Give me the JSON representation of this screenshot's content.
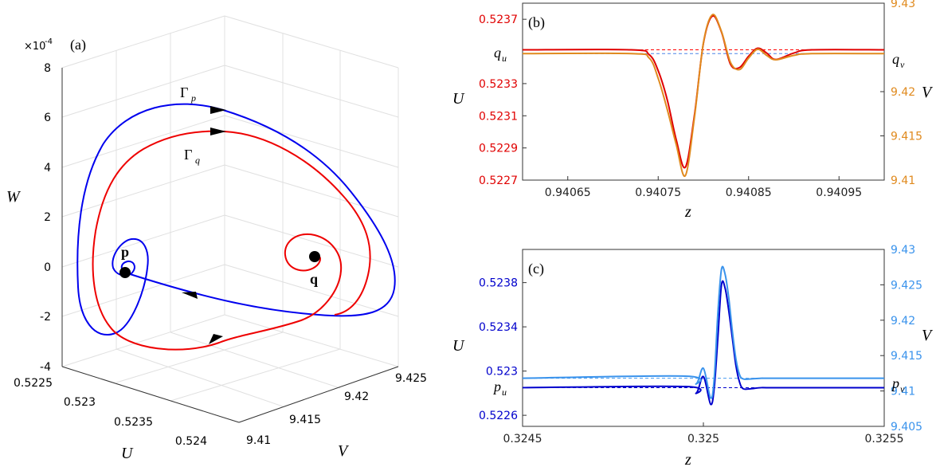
{
  "chart_data": [
    {
      "panel": "(a)",
      "type": "line",
      "projection": "3d",
      "grid": true,
      "xlabel": "U",
      "ylabel": "V",
      "zlabel": "W",
      "z_exponent_label": "×10",
      "z_exponent_power": "-4",
      "xlim": [
        0.5225,
        0.524
      ],
      "ylim": [
        9.41,
        9.425
      ],
      "zlim": [
        -4,
        8
      ],
      "x_ticks": [
        "0.5225",
        "0.523",
        "0.5235",
        "0.524"
      ],
      "y_ticks": [
        "9.41",
        "9.415",
        "9.42",
        "9.425"
      ],
      "z_ticks": [
        "-4",
        "-2",
        "0",
        "2",
        "4",
        "6",
        "8"
      ],
      "curve_labels": [
        {
          "text": "Γ",
          "sub": "p",
          "color": "#0000ee"
        },
        {
          "text": "Γ",
          "sub": "q",
          "color": "#ee0000"
        }
      ],
      "points": [
        {
          "name": "p",
          "U": 0.5228,
          "V": 9.4115,
          "W": 0.0
        },
        {
          "name": "q",
          "U": 0.5237,
          "V": 9.4215,
          "W": 0.0
        }
      ],
      "series": [
        {
          "name": "Γp",
          "color": "#0000ee"
        },
        {
          "name": "Γq",
          "color": "#ee0000"
        }
      ]
    },
    {
      "panel": "(b)",
      "type": "line",
      "xlabel": "z",
      "ylabel_left": "U",
      "ylabel_right": "V",
      "xlim": [
        0.9406,
        0.941
      ],
      "ylim_left": [
        0.5227,
        0.5238
      ],
      "ylim_right": [
        9.41,
        9.43
      ],
      "x_ticks": [
        0.94065,
        0.94075,
        0.94085,
        0.94095
      ],
      "x_tick_labels": [
        "0.94065",
        "0.94075",
        "0.94085",
        "0.94095"
      ],
      "y_ticks_left": [
        0.5227,
        0.5229,
        0.5231,
        0.5233,
        0.5237
      ],
      "y_tick_labels_left": [
        "0.5227",
        "0.5229",
        "0.5231",
        "0.5233",
        "0.5237"
      ],
      "y_ticks_right": [
        9.41,
        9.415,
        9.42,
        9.43
      ],
      "y_tick_labels_right": [
        "9.41",
        "9.415",
        "9.42",
        "9.43"
      ],
      "ref_lines": [
        {
          "label": "q",
          "sub": "u",
          "axis": "left",
          "value": 0.52351,
          "color": "#ff0000"
        },
        {
          "label": "q",
          "sub": "v",
          "axis": "right",
          "value": 9.4243,
          "color": "#4a86e8"
        }
      ],
      "series": [
        {
          "name": "U",
          "axis": "left",
          "color": "#e00000",
          "x": [
            0.9406,
            0.94072,
            0.94074,
            0.94075,
            0.94076,
            0.94077,
            0.94078,
            0.94079,
            0.9408,
            0.94081,
            0.94082,
            0.94083,
            0.94084,
            0.94085,
            0.94086,
            0.94087,
            0.94088,
            0.9409,
            0.94092,
            0.941
          ],
          "y": [
            0.52351,
            0.52351,
            0.52348,
            0.52338,
            0.5232,
            0.52295,
            0.52278,
            0.5231,
            0.52355,
            0.52372,
            0.52362,
            0.52342,
            0.5234,
            0.52347,
            0.52352,
            0.52349,
            0.52345,
            0.52349,
            0.52351,
            0.52351
          ]
        },
        {
          "name": "V",
          "axis": "right",
          "color": "#e08a1e",
          "x": [
            0.9406,
            0.94072,
            0.94074,
            0.94075,
            0.94076,
            0.94077,
            0.94078,
            0.94079,
            0.9408,
            0.94081,
            0.94082,
            0.94083,
            0.94084,
            0.94085,
            0.94086,
            0.94087,
            0.94088,
            0.9409,
            0.94092,
            0.941
          ],
          "y": [
            9.4243,
            9.4243,
            9.4238,
            9.4215,
            9.418,
            9.414,
            9.4105,
            9.417,
            9.4255,
            9.4287,
            9.4268,
            9.4233,
            9.4225,
            9.4238,
            9.4248,
            9.4241,
            9.4236,
            9.4241,
            9.4243,
            9.4243
          ]
        }
      ]
    },
    {
      "panel": "(c)",
      "type": "line",
      "xlabel": "z",
      "ylabel_left": "U",
      "ylabel_right": "V",
      "xlim": [
        0.3245,
        0.3255
      ],
      "ylim_left": [
        0.5225,
        0.5241
      ],
      "ylim_right": [
        9.405,
        9.43
      ],
      "x_ticks": [
        0.3245,
        0.325,
        0.3255
      ],
      "x_tick_labels": [
        "0.3245",
        "0.325",
        "0.3255"
      ],
      "y_ticks_left": [
        0.5226,
        0.523,
        0.5234,
        0.5238
      ],
      "y_tick_labels_left": [
        "0.5226",
        "0.523",
        "0.5234",
        "0.5238"
      ],
      "y_ticks_right": [
        9.405,
        9.41,
        9.415,
        9.42,
        9.425,
        9.43
      ],
      "y_tick_labels_right": [
        "9.405",
        "9.41",
        "9.415",
        "9.42",
        "9.425",
        "9.43"
      ],
      "ref_lines": [
        {
          "label": "p",
          "sub": "u",
          "axis": "left",
          "value": 0.52285,
          "color": "#0000cc"
        },
        {
          "label": "p",
          "sub": "v",
          "axis": "right",
          "value": 9.4118,
          "color": "#4a9cf0"
        }
      ],
      "series": [
        {
          "name": "U",
          "axis": "left",
          "color": "#0000cc",
          "x": [
            0.3245,
            0.32495,
            0.32498,
            0.325,
            0.32502,
            0.32503,
            0.32504,
            0.32505,
            0.32506,
            0.32507,
            0.32508,
            0.32509,
            0.3251,
            0.32511,
            0.32513,
            0.32516,
            0.3252,
            0.3255
          ],
          "y": [
            0.52285,
            0.52286,
            0.5228,
            0.52295,
            0.5227,
            0.52285,
            0.5233,
            0.52378,
            0.52375,
            0.52355,
            0.5233,
            0.52305,
            0.5229,
            0.52284,
            0.52284,
            0.52285,
            0.52285,
            0.52285
          ]
        },
        {
          "name": "V",
          "axis": "right",
          "color": "#3a93ec",
          "x": [
            0.3245,
            0.32495,
            0.32498,
            0.325,
            0.32502,
            0.32503,
            0.32504,
            0.32505,
            0.32506,
            0.32507,
            0.32508,
            0.32509,
            0.3251,
            0.32511,
            0.32513,
            0.32516,
            0.3252,
            0.3255
          ],
          "y": [
            9.4118,
            9.4121,
            9.411,
            9.4132,
            9.409,
            9.4118,
            9.421,
            9.4272,
            9.4265,
            9.4232,
            9.4185,
            9.4145,
            9.4123,
            9.4117,
            9.4117,
            9.4118,
            9.4118,
            9.4118
          ]
        }
      ]
    }
  ],
  "panel_labels": {
    "a": "(a)",
    "b": "(b)",
    "c": "(c)"
  }
}
